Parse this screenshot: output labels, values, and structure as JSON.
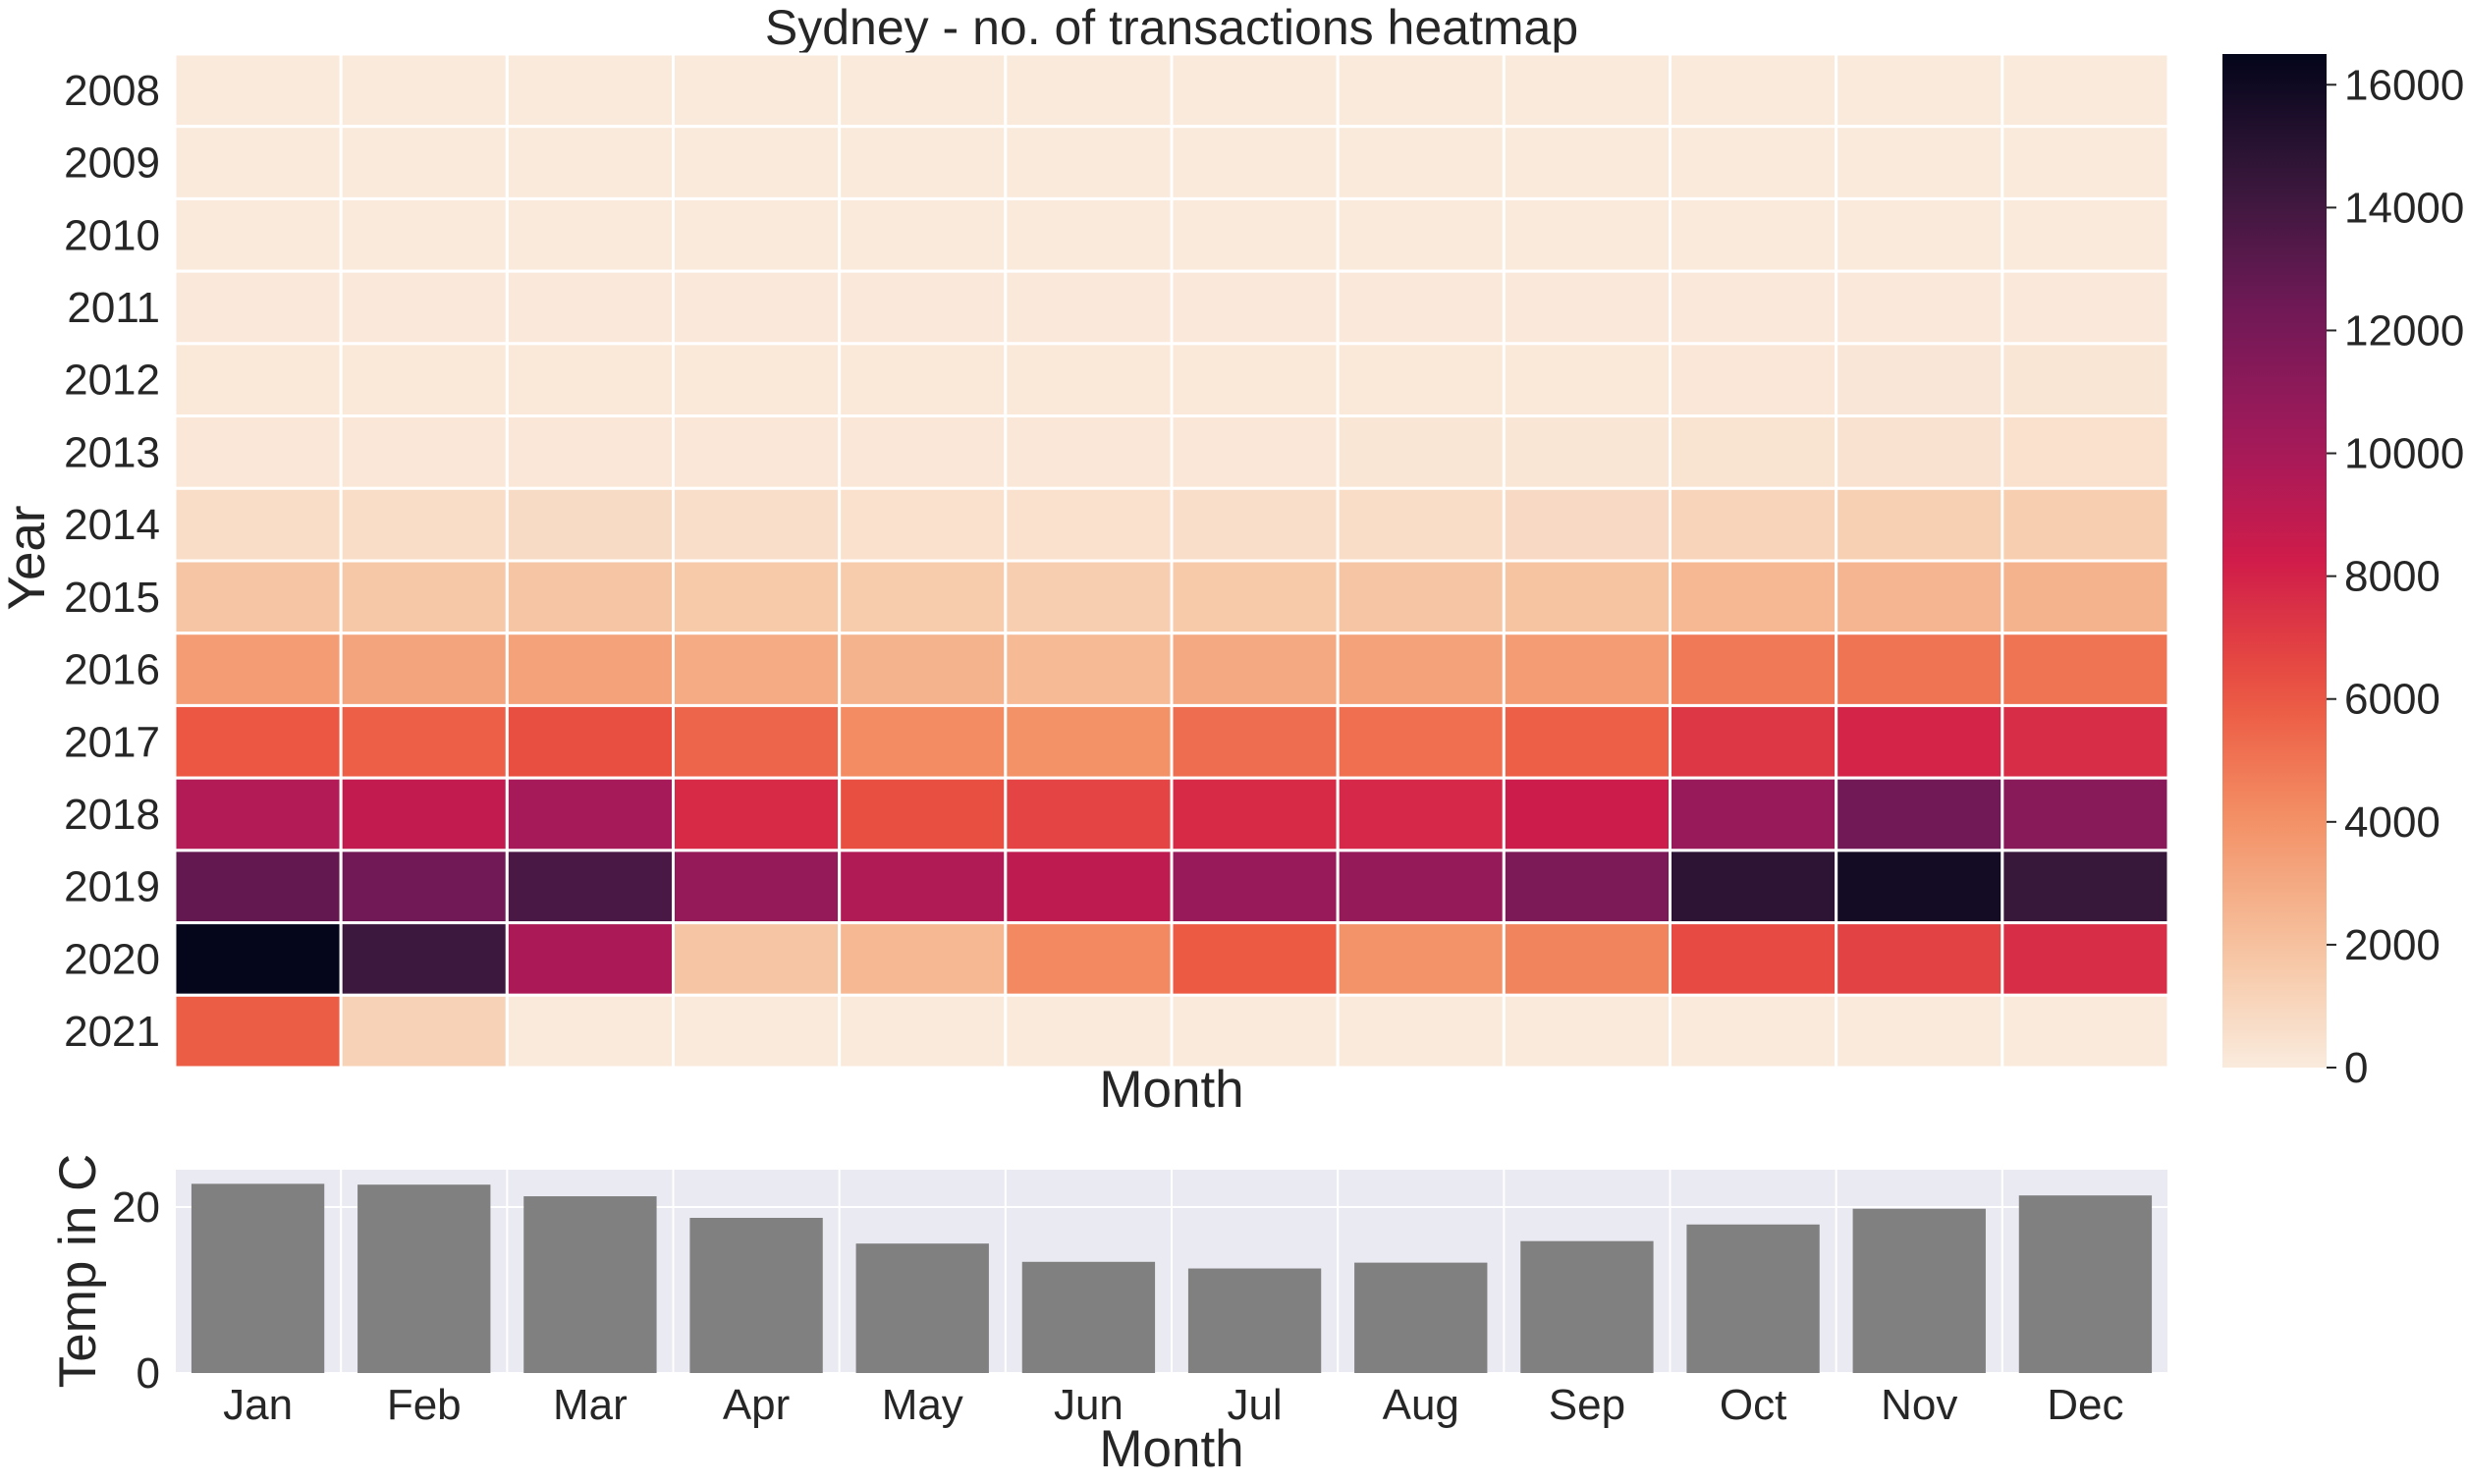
{
  "chart_data": [
    {
      "type": "heatmap",
      "title": "Sydney - no. of transactions heatmap",
      "xlabel": "Month",
      "ylabel": "Year",
      "x_tick_labels_shown": false,
      "months": [
        "Jan",
        "Feb",
        "Mar",
        "Apr",
        "May",
        "Jun",
        "Jul",
        "Aug",
        "Sep",
        "Oct",
        "Nov",
        "Dec"
      ],
      "years": [
        "2008",
        "2009",
        "2010",
        "2011",
        "2012",
        "2013",
        "2014",
        "2015",
        "2016",
        "2017",
        "2018",
        "2019",
        "2020",
        "2021"
      ],
      "values": [
        [
          50,
          50,
          50,
          50,
          50,
          50,
          50,
          50,
          50,
          50,
          50,
          50
        ],
        [
          60,
          60,
          60,
          60,
          60,
          60,
          60,
          60,
          60,
          60,
          60,
          60
        ],
        [
          60,
          60,
          60,
          60,
          60,
          60,
          60,
          60,
          60,
          60,
          60,
          60
        ],
        [
          80,
          80,
          80,
          80,
          80,
          80,
          80,
          80,
          80,
          80,
          80,
          80
        ],
        [
          120,
          120,
          120,
          120,
          120,
          120,
          120,
          150,
          150,
          180,
          220,
          250
        ],
        [
          200,
          200,
          200,
          200,
          200,
          200,
          200,
          250,
          250,
          350,
          450,
          500
        ],
        [
          700,
          700,
          750,
          600,
          500,
          500,
          600,
          700,
          800,
          1100,
          1300,
          1400
        ],
        [
          1800,
          1700,
          1800,
          1600,
          1500,
          1400,
          1600,
          1800,
          1900,
          2400,
          2500,
          2600
        ],
        [
          3500,
          3200,
          3300,
          2900,
          2600,
          2300,
          3000,
          3300,
          3500,
          4800,
          5000,
          5000
        ],
        [
          6000,
          5700,
          6300,
          5500,
          4200,
          4000,
          5300,
          5200,
          5700,
          7200,
          7900,
          7600
        ],
        [
          9500,
          8900,
          10000,
          7700,
          6300,
          6700,
          7700,
          7800,
          8400,
          10600,
          12300,
          11300
        ],
        [
          12800,
          12300,
          13700,
          10800,
          9600,
          9000,
          10600,
          10800,
          11800,
          14800,
          15800,
          14400
        ],
        [
          16400,
          14200,
          9800,
          1800,
          2400,
          4300,
          5900,
          3900,
          4500,
          6500,
          6800,
          7600
        ],
        [
          5800,
          1200,
          50,
          50,
          50,
          50,
          50,
          50,
          50,
          50,
          50,
          50
        ]
      ],
      "colorbar": {
        "range": [
          0,
          16500
        ],
        "ticks": [
          "0",
          "2000",
          "4000",
          "6000",
          "8000",
          "10000",
          "12000",
          "14000",
          "16000"
        ],
        "colormap": "rocket_r"
      },
      "colors": {
        "cell_border": "#ffffff"
      }
    },
    {
      "type": "bar",
      "xlabel": "Month",
      "ylabel": "Temp in C",
      "categories": [
        "Jan",
        "Feb",
        "Mar",
        "Apr",
        "May",
        "Jun",
        "Jul",
        "Aug",
        "Sep",
        "Oct",
        "Nov",
        "Dec"
      ],
      "values": [
        22.8,
        22.7,
        21.3,
        18.7,
        15.6,
        13.4,
        12.6,
        13.3,
        15.9,
        17.9,
        19.8,
        21.4
      ],
      "ylim": [
        0,
        24.5
      ],
      "yticks": [
        "0",
        "20"
      ],
      "grid": true,
      "colors": {
        "bar": "#808080",
        "plot_background": "#eaeaf2",
        "grid": "#ffffff"
      }
    }
  ]
}
